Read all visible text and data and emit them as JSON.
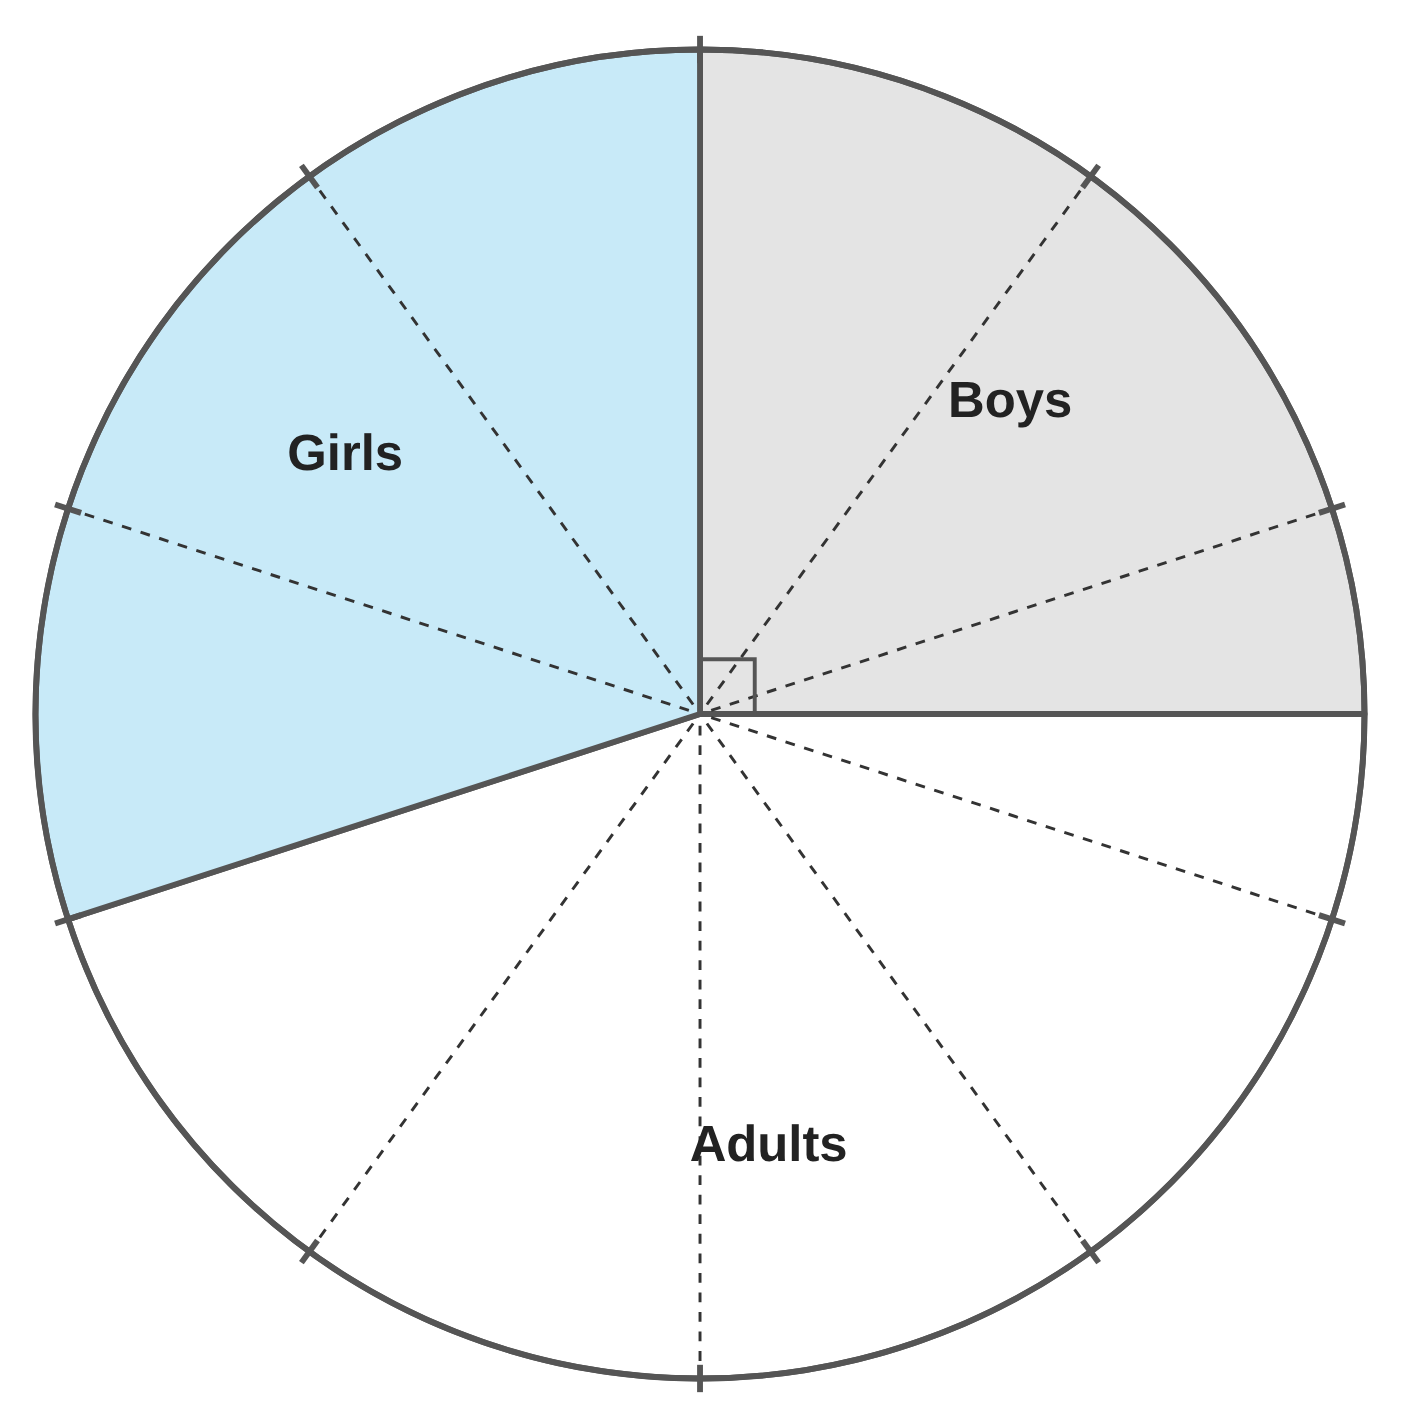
{
  "chart_data": {
    "type": "pie",
    "categories": [
      "Boys",
      "Adults",
      "Girls"
    ],
    "values": [
      25,
      45,
      30
    ],
    "colors": [
      "#e4e4e4",
      "#ffffff",
      "#c8eaf8"
    ]
  }
}
